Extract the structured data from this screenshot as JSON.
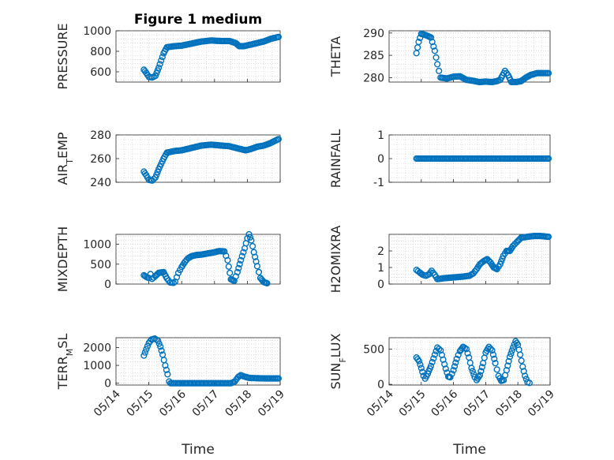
{
  "figure_title": "Figure 1 medium",
  "chart_data": [
    {
      "type": "scatter",
      "ylabel": "PRESSURE",
      "ylim": [
        500,
        1000
      ],
      "yticks": [
        600,
        800,
        1000
      ],
      "xlim": [
        "05/14",
        "05/19"
      ],
      "xticks": [
        "05/14",
        "05/15",
        "05/16",
        "05/17",
        "05/18",
        "05/19"
      ],
      "show_xticklabels": false,
      "grid": true,
      "curve": [
        [
          14.85,
          620
        ],
        [
          14.92,
          590
        ],
        [
          15.0,
          550
        ],
        [
          15.1,
          545
        ],
        [
          15.2,
          560
        ],
        [
          15.3,
          640
        ],
        [
          15.45,
          780
        ],
        [
          15.55,
          840
        ],
        [
          15.8,
          850
        ],
        [
          16.0,
          855
        ],
        [
          16.3,
          875
        ],
        [
          16.6,
          895
        ],
        [
          16.9,
          905
        ],
        [
          17.2,
          900
        ],
        [
          17.45,
          900
        ],
        [
          17.65,
          880
        ],
        [
          17.75,
          850
        ],
        [
          17.9,
          850
        ],
        [
          18.1,
          865
        ],
        [
          18.3,
          880
        ],
        [
          18.5,
          895
        ],
        [
          18.7,
          920
        ],
        [
          18.95,
          940
        ]
      ]
    },
    {
      "type": "scatter",
      "ylabel": "THETA",
      "ylim": [
        279,
        290.5
      ],
      "yticks": [
        280,
        285,
        290
      ],
      "xlim": [
        "05/14",
        "05/19"
      ],
      "xticks": [
        "05/14",
        "05/15",
        "05/16",
        "05/17",
        "05/18",
        "05/19"
      ],
      "show_xticklabels": false,
      "grid": true,
      "curve": [
        [
          14.85,
          285.5
        ],
        [
          14.92,
          288
        ],
        [
          15.0,
          289.8
        ],
        [
          15.15,
          289.5
        ],
        [
          15.3,
          289
        ],
        [
          15.42,
          286
        ],
        [
          15.5,
          283
        ],
        [
          15.6,
          280
        ],
        [
          15.8,
          279.8
        ],
        [
          16.0,
          280.2
        ],
        [
          16.2,
          280.3
        ],
        [
          16.4,
          279.5
        ],
        [
          16.6,
          279.3
        ],
        [
          16.8,
          279
        ],
        [
          17.0,
          279.1
        ],
        [
          17.2,
          279
        ],
        [
          17.35,
          279.2
        ],
        [
          17.45,
          279.5
        ],
        [
          17.6,
          281.5
        ],
        [
          17.7,
          280.5
        ],
        [
          17.8,
          279
        ],
        [
          17.95,
          279
        ],
        [
          18.1,
          279.2
        ],
        [
          18.25,
          280
        ],
        [
          18.4,
          280.6
        ],
        [
          18.6,
          281
        ],
        [
          18.95,
          281
        ]
      ]
    },
    {
      "type": "scatter",
      "ylabel": "AIR_TEMP",
      "ylim": [
        240,
        280
      ],
      "yticks": [
        240,
        260,
        280
      ],
      "xlim": [
        "05/14",
        "05/19"
      ],
      "xticks": [
        "05/14",
        "05/15",
        "05/16",
        "05/17",
        "05/18",
        "05/19"
      ],
      "show_xticklabels": false,
      "grid": true,
      "curve": [
        [
          14.85,
          249
        ],
        [
          14.92,
          246
        ],
        [
          15.0,
          242
        ],
        [
          15.1,
          241.5
        ],
        [
          15.2,
          244
        ],
        [
          15.3,
          251
        ],
        [
          15.45,
          260
        ],
        [
          15.55,
          265
        ],
        [
          15.8,
          266.5
        ],
        [
          16.0,
          267
        ],
        [
          16.3,
          269
        ],
        [
          16.6,
          271
        ],
        [
          16.9,
          271.8
        ],
        [
          17.2,
          271
        ],
        [
          17.45,
          270.5
        ],
        [
          17.65,
          269
        ],
        [
          17.8,
          268
        ],
        [
          17.95,
          267
        ],
        [
          18.1,
          268
        ],
        [
          18.3,
          270
        ],
        [
          18.5,
          271
        ],
        [
          18.7,
          273
        ],
        [
          18.95,
          276.5
        ]
      ]
    },
    {
      "type": "scatter",
      "ylabel": "RAINFALL",
      "ylim": [
        -1,
        1
      ],
      "yticks": [
        -1,
        0,
        1
      ],
      "xlim": [
        "05/14",
        "05/19"
      ],
      "xticks": [
        "05/14",
        "05/15",
        "05/16",
        "05/17",
        "05/18",
        "05/19"
      ],
      "show_xticklabels": false,
      "grid": true,
      "curve": [
        [
          14.85,
          0
        ],
        [
          18.95,
          0
        ]
      ]
    },
    {
      "type": "scatter",
      "ylabel": "MIXDEPTH",
      "ylim": [
        0,
        1250
      ],
      "yticks": [
        0,
        500,
        1000
      ],
      "xlim": [
        "05/14",
        "05/19"
      ],
      "xticks": [
        "05/14",
        "05/15",
        "05/16",
        "05/17",
        "05/18",
        "05/19"
      ],
      "show_xticklabels": false,
      "grid": true,
      "curve": [
        [
          14.85,
          220
        ],
        [
          14.92,
          180
        ],
        [
          15.0,
          150
        ],
        [
          15.05,
          250
        ],
        [
          15.1,
          130
        ],
        [
          15.2,
          200
        ],
        [
          15.3,
          280
        ],
        [
          15.45,
          300
        ],
        [
          15.55,
          140
        ],
        [
          15.65,
          40
        ],
        [
          15.75,
          30
        ],
        [
          15.8,
          60
        ],
        [
          15.9,
          280
        ],
        [
          16.0,
          430
        ],
        [
          16.1,
          560
        ],
        [
          16.2,
          650
        ],
        [
          16.3,
          700
        ],
        [
          16.45,
          730
        ],
        [
          16.6,
          740
        ],
        [
          16.8,
          770
        ],
        [
          17.0,
          800
        ],
        [
          17.15,
          830
        ],
        [
          17.3,
          820
        ],
        [
          17.4,
          600
        ],
        [
          17.5,
          120
        ],
        [
          17.6,
          80
        ],
        [
          17.7,
          300
        ],
        [
          17.8,
          600
        ],
        [
          17.92,
          900
        ],
        [
          18.0,
          1150
        ],
        [
          18.05,
          1250
        ],
        [
          18.12,
          1100
        ],
        [
          18.2,
          800
        ],
        [
          18.3,
          450
        ],
        [
          18.4,
          150
        ],
        [
          18.5,
          50
        ],
        [
          18.6,
          20
        ]
      ]
    },
    {
      "type": "scatter",
      "ylabel": "H2OMIXRA",
      "ylim": [
        0,
        3
      ],
      "yticks": [
        0,
        1,
        2
      ],
      "xlim": [
        "05/14",
        "05/19"
      ],
      "xticks": [
        "05/14",
        "05/15",
        "05/16",
        "05/17",
        "05/18",
        "05/19"
      ],
      "show_xticklabels": false,
      "grid": true,
      "curve": [
        [
          14.85,
          0.85
        ],
        [
          14.95,
          0.7
        ],
        [
          15.05,
          0.55
        ],
        [
          15.15,
          0.5
        ],
        [
          15.25,
          0.6
        ],
        [
          15.32,
          0.8
        ],
        [
          15.42,
          0.55
        ],
        [
          15.5,
          0.3
        ],
        [
          15.7,
          0.35
        ],
        [
          16.0,
          0.4
        ],
        [
          16.3,
          0.45
        ],
        [
          16.5,
          0.5
        ],
        [
          16.62,
          0.65
        ],
        [
          16.72,
          0.9
        ],
        [
          16.82,
          1.2
        ],
        [
          16.95,
          1.4
        ],
        [
          17.05,
          1.5
        ],
        [
          17.15,
          1.3
        ],
        [
          17.25,
          1.0
        ],
        [
          17.35,
          0.9
        ],
        [
          17.45,
          1.2
        ],
        [
          17.55,
          1.7
        ],
        [
          17.65,
          2.0
        ],
        [
          17.75,
          2.0
        ],
        [
          17.85,
          2.3
        ],
        [
          17.95,
          2.5
        ],
        [
          18.1,
          2.8
        ],
        [
          18.3,
          2.85
        ],
        [
          18.5,
          2.9
        ],
        [
          18.7,
          2.9
        ],
        [
          18.95,
          2.85
        ]
      ]
    },
    {
      "type": "scatter",
      "ylabel": "TERR_MSL",
      "ylim": [
        -100,
        2550
      ],
      "yticks": [
        0,
        1000,
        2000
      ],
      "xlim": [
        "05/14",
        "05/19"
      ],
      "xticks": [
        "05/14",
        "05/15",
        "05/16",
        "05/17",
        "05/18",
        "05/19"
      ],
      "show_xticklabels": true,
      "xlabel": "Time",
      "grid": true,
      "curve": [
        [
          14.85,
          1550
        ],
        [
          14.92,
          1900
        ],
        [
          15.0,
          2250
        ],
        [
          15.08,
          2450
        ],
        [
          15.18,
          2500
        ],
        [
          15.28,
          2380
        ],
        [
          15.35,
          2050
        ],
        [
          15.42,
          1600
        ],
        [
          15.5,
          1000
        ],
        [
          15.57,
          500
        ],
        [
          15.62,
          100
        ],
        [
          15.66,
          0
        ],
        [
          16.5,
          0
        ],
        [
          17.3,
          0
        ],
        [
          17.5,
          0
        ],
        [
          17.62,
          100
        ],
        [
          17.72,
          350
        ],
        [
          17.8,
          450
        ],
        [
          17.9,
          380
        ],
        [
          18.05,
          300
        ],
        [
          18.3,
          280
        ],
        [
          18.6,
          270
        ],
        [
          18.95,
          270
        ]
      ]
    },
    {
      "type": "scatter",
      "ylabel": "SUN_FLUX",
      "ylim": [
        -10,
        660
      ],
      "yticks": [
        0,
        500
      ],
      "xlim": [
        "05/14",
        "05/19"
      ],
      "xticks": [
        "05/14",
        "05/15",
        "05/16",
        "05/17",
        "05/18",
        "05/19"
      ],
      "show_xticklabels": true,
      "xlabel": "Time",
      "grid": true,
      "curve": [
        [
          14.85,
          380
        ],
        [
          14.93,
          330
        ],
        [
          15.0,
          230
        ],
        [
          15.07,
          120
        ],
        [
          15.12,
          80
        ],
        [
          15.2,
          150
        ],
        [
          15.3,
          260
        ],
        [
          15.42,
          420
        ],
        [
          15.5,
          520
        ],
        [
          15.6,
          480
        ],
        [
          15.68,
          350
        ],
        [
          15.76,
          220
        ],
        [
          15.84,
          110
        ],
        [
          15.9,
          100
        ],
        [
          16.0,
          200
        ],
        [
          16.1,
          360
        ],
        [
          16.2,
          470
        ],
        [
          16.3,
          530
        ],
        [
          16.4,
          500
        ],
        [
          16.48,
          380
        ],
        [
          16.56,
          230
        ],
        [
          16.66,
          100
        ],
        [
          16.72,
          60
        ],
        [
          16.82,
          130
        ],
        [
          16.92,
          300
        ],
        [
          17.0,
          450
        ],
        [
          17.1,
          530
        ],
        [
          17.2,
          480
        ],
        [
          17.3,
          300
        ],
        [
          17.4,
          120
        ],
        [
          17.48,
          50
        ],
        [
          17.56,
          60
        ],
        [
          17.65,
          200
        ],
        [
          17.75,
          390
        ],
        [
          17.85,
          520
        ],
        [
          17.93,
          610
        ],
        [
          18.0,
          560
        ],
        [
          18.07,
          420
        ],
        [
          18.15,
          250
        ],
        [
          18.22,
          120
        ],
        [
          18.3,
          30
        ],
        [
          18.36,
          20
        ]
      ]
    }
  ]
}
